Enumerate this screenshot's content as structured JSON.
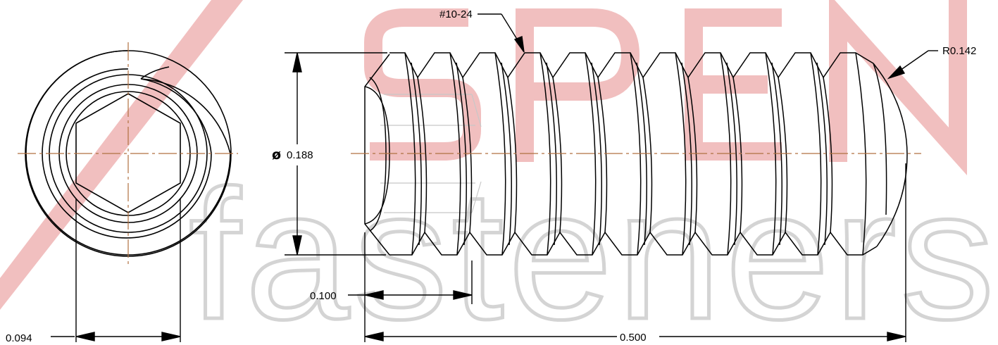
{
  "watermark": {
    "brand_top": "ASPEN",
    "brand_bottom": "fasteners",
    "colors": {
      "red": "#e8a8a8",
      "gray": "#d4d4d4"
    }
  },
  "end_view": {
    "dimension_hex": "0.094"
  },
  "side_view": {
    "thread_callout": "#10-24",
    "radius_callout": "R0.142",
    "diameter_symbol": "ø",
    "diameter_value": "0.188",
    "dimension_socket_depth": "0.100",
    "dimension_length": "0.500"
  },
  "colors": {
    "line": "#000000",
    "centerline": "#b07040",
    "thread_hidden": "#c8c8c8"
  }
}
